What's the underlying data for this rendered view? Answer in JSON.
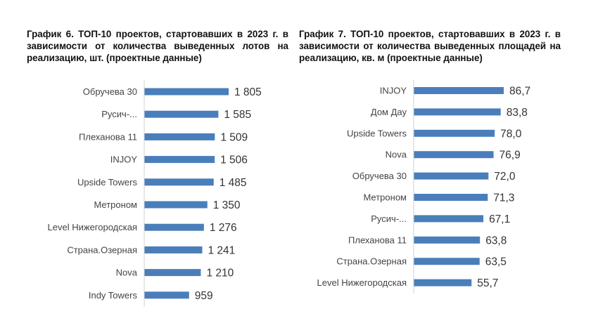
{
  "chart_data": [
    {
      "type": "bar",
      "orientation": "horizontal",
      "title": "График 6. ТОП-10 проектов, стартовавших в 2023 г. в зависимости от количества выведенных лотов на реализацию, шт. (проектные данные)",
      "categories": [
        "Обручева 30",
        "Русич-...",
        "Плеханова 11",
        "INJOY",
        "Upside Towers",
        "Метроном",
        "Level Нижегородская",
        "Страна.Озерная",
        "Nova",
        "Indy Towers"
      ],
      "values": [
        1805,
        1585,
        1509,
        1506,
        1485,
        1350,
        1276,
        1241,
        1210,
        959
      ],
      "value_labels": [
        "1 805",
        "1 585",
        "1 509",
        "1 506",
        "1 485",
        "1 350",
        "1 276",
        "1 241",
        "1 210",
        "959"
      ],
      "xlim": [
        0,
        1805
      ],
      "grid": false,
      "bar_color": "#4a7ebb"
    },
    {
      "type": "bar",
      "orientation": "horizontal",
      "title": "График 7. ТОП-10 проектов, стартовавших в 2023 г. в зависимости от количества выведенных площадей на реализацию, кв. м (проектные данные)",
      "categories": [
        "INJOY",
        "Дом Дау",
        "Upside Towers",
        "Nova",
        "Обручева 30",
        "Метроном",
        "Русич-...",
        "Плеханова 11",
        "Страна.Озерная",
        "Level Нижегородская"
      ],
      "values": [
        86.7,
        83.8,
        78.0,
        76.9,
        72.0,
        71.3,
        67.1,
        63.8,
        63.5,
        55.7
      ],
      "value_labels": [
        "86,7",
        "83,8",
        "78,0",
        "76,9",
        "72,0",
        "71,3",
        "67,1",
        "63,8",
        "63,5",
        "55,7"
      ],
      "xlim": [
        0,
        86.7
      ],
      "grid": false,
      "bar_color": "#4a7ebb"
    }
  ]
}
